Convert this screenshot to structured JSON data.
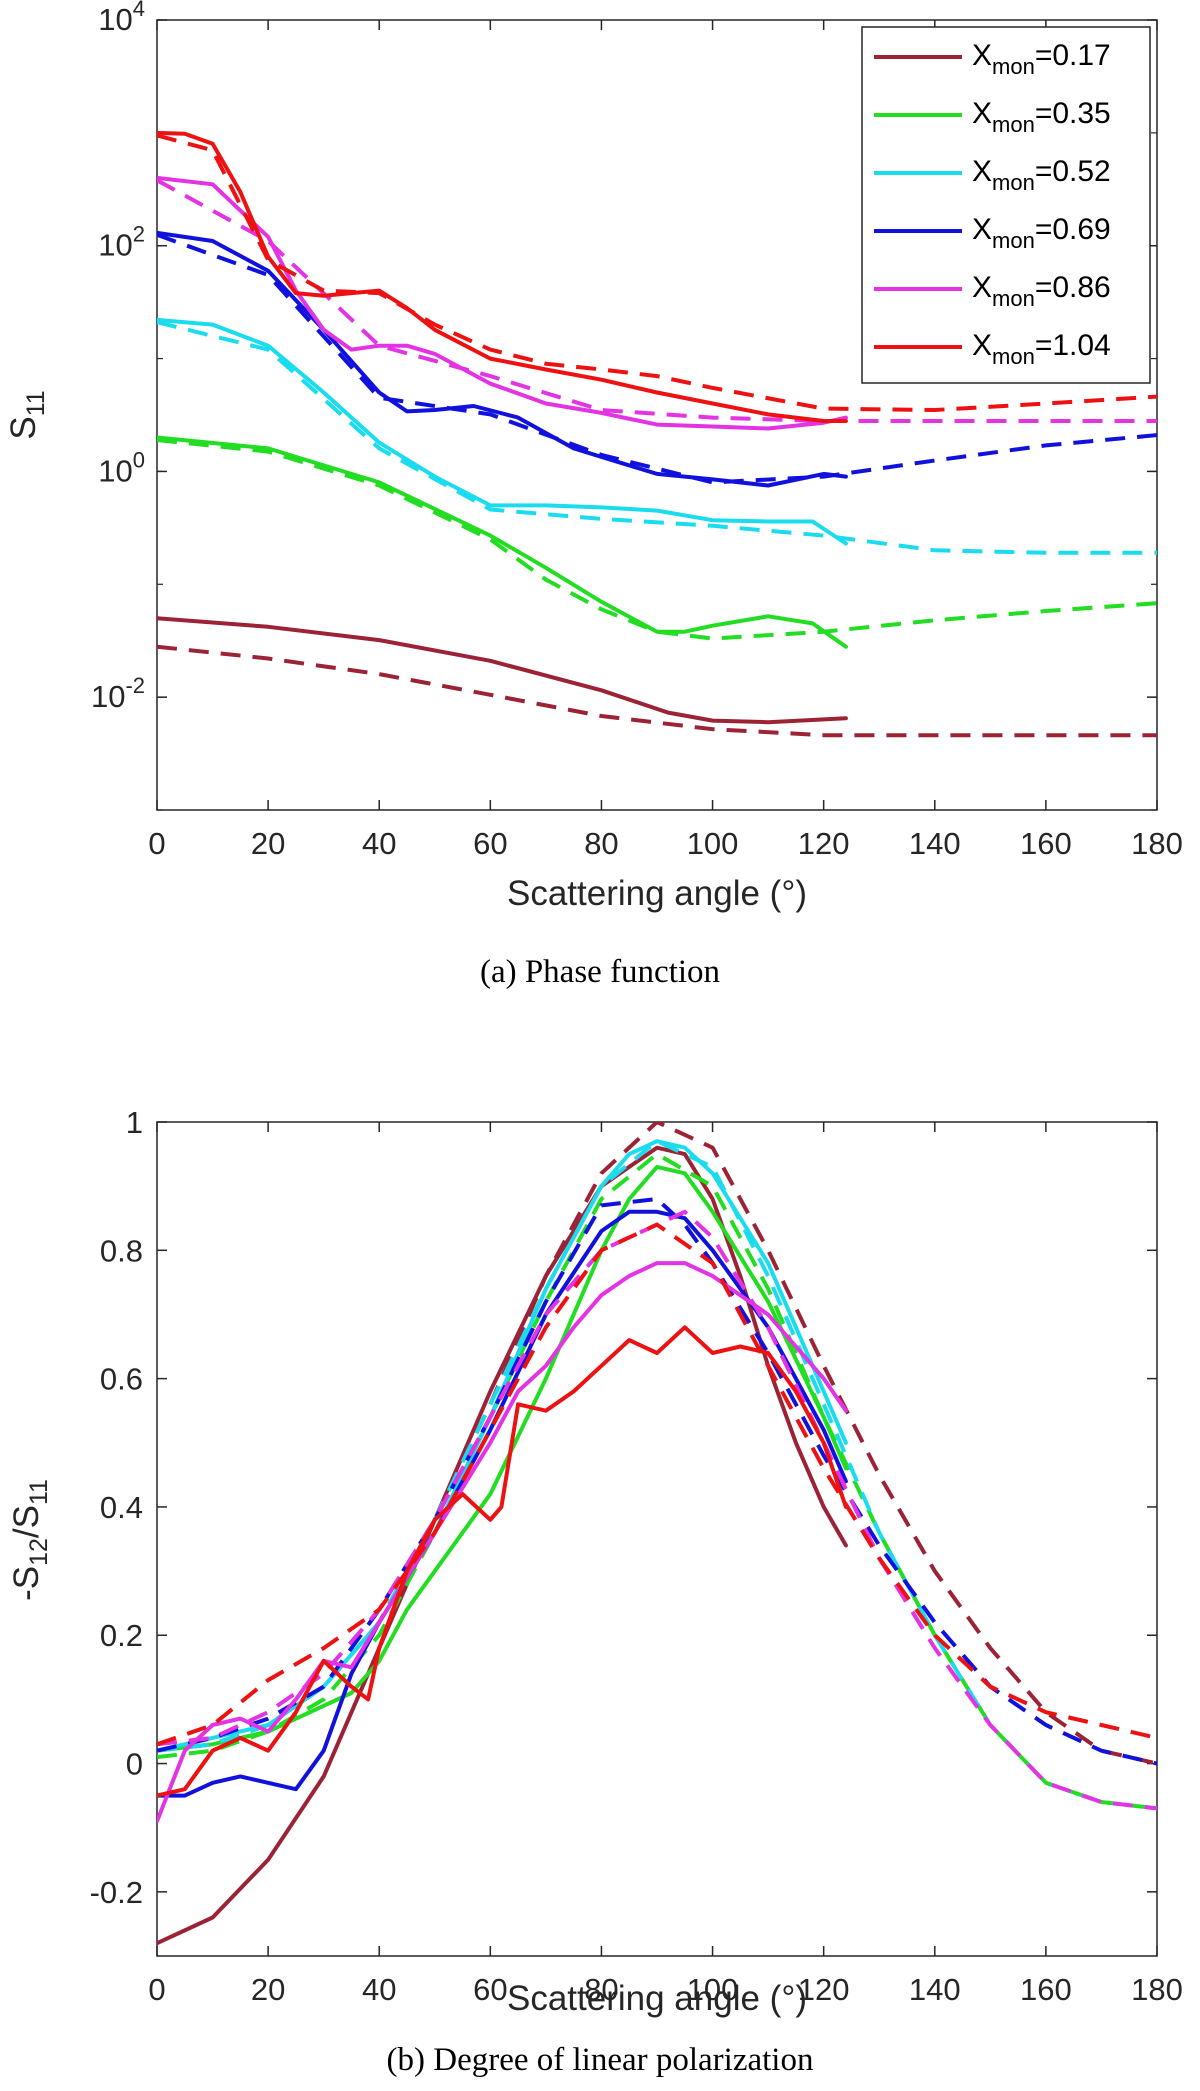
{
  "chart_data": [
    {
      "type": "line",
      "panel": "a",
      "caption": "(a)   Phase function",
      "xlabel": "Scattering angle (°)",
      "ylabel": "S",
      "ylabel_sub": "11",
      "yscale": "log",
      "xlim": [
        0,
        180
      ],
      "ylim": [
        0.001,
        10000
      ],
      "xticks": [
        "0",
        "20",
        "40",
        "60",
        "80",
        "100",
        "120",
        "140",
        "160",
        "180"
      ],
      "yticks": [
        {
          "base": "10",
          "exp": "-2"
        },
        {
          "base": "10",
          "exp": "0"
        },
        {
          "base": "10",
          "exp": "2"
        },
        {
          "base": "10",
          "exp": "4"
        }
      ],
      "legend_position": "top-right",
      "series": [
        {
          "legend_main": "X",
          "legend_sub": "mon",
          "legend_value": "=0.17",
          "color": "#9B2335",
          "solid_x": [
            0,
            20,
            40,
            60,
            80,
            92,
            100,
            110,
            124
          ],
          "solid_y": [
            0.05,
            0.042,
            0.032,
            0.021,
            0.0115,
            0.0073,
            0.0062,
            0.006,
            0.0065
          ],
          "dashed_x": [
            0,
            20,
            40,
            60,
            80,
            100,
            120,
            140,
            180
          ],
          "dashed_y": [
            0.028,
            0.022,
            0.016,
            0.0105,
            0.0068,
            0.0052,
            0.0046,
            0.0046,
            0.0046
          ]
        },
        {
          "legend_main": "X",
          "legend_sub": "mon",
          "legend_value": "=0.35",
          "color": "#22DD22",
          "solid_x": [
            0,
            20,
            40,
            60,
            70,
            80,
            90,
            95,
            100,
            110,
            118,
            124
          ],
          "solid_y": [
            2.0,
            1.6,
            0.8,
            0.27,
            0.14,
            0.07,
            0.038,
            0.038,
            0.043,
            0.052,
            0.045,
            0.028
          ],
          "dashed_x": [
            0,
            20,
            40,
            60,
            70,
            80,
            90,
            100,
            120,
            140,
            160,
            180
          ],
          "dashed_y": [
            1.9,
            1.5,
            0.75,
            0.25,
            0.11,
            0.06,
            0.038,
            0.033,
            0.038,
            0.048,
            0.058,
            0.068
          ]
        },
        {
          "legend_main": "X",
          "legend_sub": "mon",
          "legend_value": "=0.52",
          "color": "#1ADCEE",
          "solid_x": [
            0,
            10,
            20,
            30,
            40,
            50,
            60,
            70,
            80,
            90,
            100,
            110,
            118,
            124
          ],
          "solid_y": [
            22,
            20,
            13,
            5,
            1.8,
            0.9,
            0.5,
            0.5,
            0.48,
            0.45,
            0.37,
            0.36,
            0.36,
            0.23
          ],
          "dashed_x": [
            0,
            20,
            40,
            60,
            80,
            100,
            120,
            140,
            160,
            180
          ],
          "dashed_y": [
            21,
            12,
            1.6,
            0.46,
            0.38,
            0.33,
            0.27,
            0.2,
            0.19,
            0.19
          ]
        },
        {
          "legend_main": "X",
          "legend_sub": "mon",
          "legend_value": "=0.69",
          "color": "#1111DD",
          "solid_x": [
            0,
            10,
            20,
            30,
            40,
            45,
            50,
            57,
            65,
            75,
            90,
            100,
            110,
            120,
            124
          ],
          "solid_y": [
            130,
            110,
            60,
            18,
            5,
            3.4,
            3.5,
            3.8,
            3,
            1.6,
            0.95,
            0.85,
            0.75,
            0.95,
            0.9
          ],
          "dashed_x": [
            0,
            20,
            40,
            60,
            80,
            100,
            120,
            140,
            160,
            180
          ],
          "dashed_y": [
            125,
            55,
            4.5,
            3.2,
            1.4,
            0.8,
            0.9,
            1.25,
            1.7,
            2.1
          ]
        },
        {
          "legend_main": "X",
          "legend_sub": "mon",
          "legend_value": "=0.86",
          "color": "#E333E3",
          "solid_x": [
            0,
            10,
            20,
            25,
            30,
            35,
            40,
            45,
            50,
            60,
            70,
            80,
            90,
            100,
            110,
            120,
            124
          ],
          "solid_y": [
            400,
            350,
            120,
            40,
            18,
            12,
            13,
            13,
            11,
            6,
            4,
            3.3,
            2.6,
            2.5,
            2.4,
            2.7,
            3
          ],
          "dashed_x": [
            0,
            20,
            40,
            60,
            80,
            100,
            120,
            140,
            160,
            180
          ],
          "dashed_y": [
            380,
            110,
            13,
            7,
            3.5,
            3,
            2.8,
            2.8,
            2.8,
            2.8
          ]
        },
        {
          "legend_main": "X",
          "legend_sub": "mon",
          "legend_value": "=1.04",
          "color": "#EE1111",
          "solid_x": [
            0,
            5,
            10,
            15,
            20,
            25,
            30,
            35,
            40,
            45,
            50,
            60,
            70,
            80,
            90,
            100,
            110,
            120,
            124
          ],
          "solid_y": [
            1000,
            980,
            800,
            300,
            80,
            38,
            36,
            38,
            40,
            28,
            18,
            10,
            8,
            6.5,
            5,
            4,
            3.2,
            2.8,
            2.8
          ],
          "dashed_x": [
            0,
            10,
            20,
            30,
            40,
            50,
            60,
            70,
            80,
            90,
            100,
            120,
            140,
            160,
            180
          ],
          "dashed_y": [
            950,
            700,
            75,
            40,
            38,
            20,
            12,
            9,
            8,
            7,
            5.5,
            3.6,
            3.5,
            4,
            4.6
          ]
        }
      ]
    },
    {
      "type": "line",
      "panel": "b",
      "caption": "(b)   Degree of linear polarization",
      "xlabel": "Scattering angle (°)",
      "ylabel_parts": [
        "-S",
        "12",
        "/S",
        "11"
      ],
      "yscale": "linear",
      "xlim": [
        0,
        180
      ],
      "ylim": [
        -0.3,
        1
      ],
      "xticks": [
        "0",
        "20",
        "40",
        "60",
        "80",
        "100",
        "120",
        "140",
        "160",
        "180"
      ],
      "yticks": [
        "-0.2",
        "0",
        "0.2",
        "0.4",
        "0.6",
        "0.8",
        "1"
      ],
      "series": [
        {
          "name": "X_mon=0.17",
          "color": "#9B2335",
          "solid_x": [
            0,
            10,
            20,
            30,
            40,
            50,
            60,
            70,
            80,
            90,
            95,
            100,
            105,
            110,
            115,
            120,
            124
          ],
          "solid_y": [
            -0.28,
            -0.24,
            -0.15,
            -0.02,
            0.18,
            0.38,
            0.58,
            0.76,
            0.9,
            0.96,
            0.95,
            0.88,
            0.76,
            0.62,
            0.5,
            0.4,
            0.34
          ],
          "dashed_x": [
            0,
            10,
            20,
            30,
            40,
            50,
            60,
            70,
            80,
            90,
            100,
            110,
            120,
            130,
            140,
            150,
            160,
            170,
            180
          ],
          "dashed_y": [
            0.02,
            0.03,
            0.06,
            0.12,
            0.22,
            0.38,
            0.56,
            0.76,
            0.92,
            1.0,
            0.96,
            0.8,
            0.62,
            0.45,
            0.3,
            0.18,
            0.08,
            0.02,
            0.0
          ]
        },
        {
          "name": "X_mon=0.35",
          "color": "#22DD22",
          "solid_x": [
            0,
            10,
            20,
            30,
            35,
            40,
            45,
            50,
            55,
            60,
            70,
            80,
            85,
            90,
            95,
            100,
            110,
            120,
            124
          ],
          "solid_y": [
            0.02,
            0.03,
            0.05,
            0.09,
            0.11,
            0.16,
            0.24,
            0.3,
            0.36,
            0.42,
            0.6,
            0.8,
            0.88,
            0.93,
            0.92,
            0.86,
            0.72,
            0.54,
            0.46
          ],
          "dashed_x": [
            0,
            10,
            20,
            30,
            40,
            50,
            60,
            70,
            80,
            90,
            100,
            110,
            120,
            130,
            140,
            150,
            160,
            170,
            180
          ],
          "dashed_y": [
            0.01,
            0.02,
            0.05,
            0.1,
            0.2,
            0.36,
            0.54,
            0.72,
            0.88,
            0.95,
            0.9,
            0.74,
            0.54,
            0.36,
            0.2,
            0.06,
            -0.03,
            -0.06,
            -0.07
          ]
        },
        {
          "name": "X_mon=0.52",
          "color": "#1ADCEE",
          "solid_x": [
            0,
            10,
            20,
            30,
            40,
            50,
            60,
            70,
            80,
            85,
            90,
            95,
            100,
            110,
            120,
            124
          ],
          "solid_y": [
            0.02,
            0.04,
            0.06,
            0.12,
            0.22,
            0.36,
            0.54,
            0.74,
            0.9,
            0.95,
            0.97,
            0.96,
            0.92,
            0.78,
            0.58,
            0.5
          ],
          "dashed_x": [
            0,
            10,
            20,
            30,
            40,
            50,
            60,
            70,
            80,
            90,
            100,
            110,
            120,
            130,
            140,
            150,
            160,
            170,
            180
          ],
          "dashed_y": [
            0.02,
            0.03,
            0.06,
            0.12,
            0.22,
            0.38,
            0.56,
            0.74,
            0.9,
            0.97,
            0.93,
            0.76,
            0.56,
            0.36,
            0.2,
            0.06,
            -0.03,
            -0.06,
            -0.07
          ]
        },
        {
          "name": "X_mon=0.69",
          "color": "#1111DD",
          "solid_x": [
            0,
            5,
            10,
            15,
            20,
            25,
            30,
            35,
            40,
            50,
            60,
            70,
            80,
            85,
            90,
            95,
            100,
            110,
            120,
            124
          ],
          "solid_y": [
            -0.05,
            -0.05,
            -0.03,
            -0.02,
            -0.03,
            -0.04,
            0.02,
            0.14,
            0.22,
            0.36,
            0.52,
            0.7,
            0.83,
            0.86,
            0.86,
            0.85,
            0.8,
            0.68,
            0.52,
            0.44
          ],
          "dashed_x": [
            0,
            10,
            20,
            30,
            40,
            50,
            60,
            70,
            80,
            90,
            95,
            100,
            110,
            120,
            130,
            140,
            150,
            160,
            170,
            180
          ],
          "dashed_y": [
            0.02,
            0.04,
            0.07,
            0.12,
            0.24,
            0.38,
            0.54,
            0.72,
            0.87,
            0.88,
            0.84,
            0.78,
            0.64,
            0.48,
            0.34,
            0.22,
            0.12,
            0.06,
            0.02,
            0.0
          ]
        },
        {
          "name": "X_mon=0.86",
          "color": "#E333E3",
          "solid_x": [
            0,
            5,
            10,
            15,
            20,
            25,
            30,
            35,
            40,
            50,
            60,
            65,
            70,
            75,
            80,
            85,
            90,
            95,
            100,
            110,
            120,
            124
          ],
          "solid_y": [
            -0.09,
            0.02,
            0.06,
            0.07,
            0.05,
            0.1,
            0.16,
            0.15,
            0.22,
            0.36,
            0.5,
            0.58,
            0.62,
            0.68,
            0.73,
            0.76,
            0.78,
            0.78,
            0.76,
            0.7,
            0.6,
            0.55
          ],
          "dashed_x": [
            0,
            10,
            20,
            30,
            40,
            50,
            60,
            70,
            80,
            90,
            95,
            100,
            110,
            120,
            130,
            140,
            150,
            160,
            170,
            180
          ],
          "dashed_y": [
            0.03,
            0.04,
            0.08,
            0.14,
            0.24,
            0.38,
            0.54,
            0.7,
            0.8,
            0.84,
            0.86,
            0.82,
            0.68,
            0.5,
            0.32,
            0.18,
            0.06,
            -0.03,
            -0.06,
            -0.07
          ]
        },
        {
          "name": "X_mon=1.04",
          "color": "#EE1111",
          "solid_x": [
            0,
            5,
            10,
            15,
            20,
            25,
            30,
            35,
            38,
            40,
            45,
            50,
            55,
            60,
            62,
            65,
            70,
            75,
            80,
            85,
            90,
            95,
            100,
            105,
            110,
            115,
            120,
            124
          ],
          "solid_y": [
            -0.05,
            -0.04,
            0.02,
            0.04,
            0.02,
            0.08,
            0.16,
            0.12,
            0.1,
            0.18,
            0.3,
            0.38,
            0.42,
            0.38,
            0.4,
            0.56,
            0.55,
            0.58,
            0.62,
            0.66,
            0.64,
            0.68,
            0.64,
            0.65,
            0.64,
            0.58,
            0.5,
            0.4
          ],
          "dashed_x": [
            0,
            10,
            20,
            30,
            40,
            50,
            60,
            70,
            80,
            90,
            100,
            110,
            120,
            130,
            140,
            150,
            160,
            170,
            180
          ],
          "dashed_y": [
            0.03,
            0.06,
            0.13,
            0.18,
            0.24,
            0.36,
            0.52,
            0.68,
            0.8,
            0.84,
            0.78,
            0.62,
            0.46,
            0.32,
            0.2,
            0.12,
            0.08,
            0.06,
            0.04
          ]
        }
      ]
    }
  ]
}
